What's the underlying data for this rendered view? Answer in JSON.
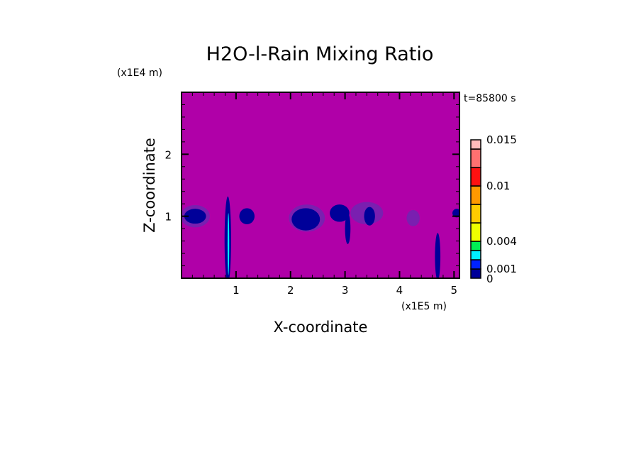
{
  "chart_data": {
    "type": "heatmap",
    "title": "H2O-l-Rain Mixing Ratio",
    "xlabel": "X-coordinate",
    "ylabel": "Z-coordinate",
    "x_unit": "(x1E5 m)",
    "y_unit": "(x1E4 m)",
    "time_label": "t=85800 s",
    "xlim": [
      0,
      5.1
    ],
    "ylim": [
      0,
      3.0
    ],
    "x_ticks": [
      1,
      2,
      3,
      4,
      5
    ],
    "x_tick_labels": [
      "1",
      "2",
      "3",
      "4",
      "5"
    ],
    "y_ticks": [
      1,
      2
    ],
    "y_tick_labels": [
      "1",
      "2"
    ],
    "background_color": "#b000a8",
    "colorbar": {
      "levels": [
        0,
        0.001,
        0.002,
        0.003,
        0.004,
        0.006,
        0.008,
        0.01,
        0.012,
        0.014,
        0.015
      ],
      "colors": [
        "#000099",
        "#0022ff",
        "#00eeff",
        "#00ee55",
        "#eeff00",
        "#ffcc00",
        "#ff9900",
        "#ff1111",
        "#ff7070",
        "#ffbbbb"
      ],
      "labels": [
        {
          "value": 0,
          "text": "0"
        },
        {
          "value": 0.001,
          "text": "0.001"
        },
        {
          "value": 0.004,
          "text": "0.004"
        },
        {
          "value": 0.01,
          "text": "0.01"
        },
        {
          "value": 0.015,
          "text": "0.015"
        }
      ]
    },
    "features": [
      {
        "x": 0.25,
        "z": 1.0,
        "rx": 0.27,
        "rz": 0.18,
        "color": "#7a1fb0"
      },
      {
        "x": 0.25,
        "z": 1.0,
        "rx": 0.2,
        "rz": 0.12,
        "color": "#000099"
      },
      {
        "x": 0.85,
        "z": 0.62,
        "rx": 0.06,
        "rz": 0.7,
        "color": "#000099"
      },
      {
        "x": 0.86,
        "z": 0.55,
        "rx": 0.015,
        "rz": 0.5,
        "color": "#00eeff"
      },
      {
        "x": 1.2,
        "z": 1.0,
        "rx": 0.14,
        "rz": 0.13,
        "color": "#000099"
      },
      {
        "x": 2.3,
        "z": 0.97,
        "rx": 0.33,
        "rz": 0.22,
        "color": "#7a1fb0"
      },
      {
        "x": 2.28,
        "z": 0.95,
        "rx": 0.26,
        "rz": 0.18,
        "color": "#000099"
      },
      {
        "x": 2.9,
        "z": 1.05,
        "rx": 0.18,
        "rz": 0.14,
        "color": "#000099"
      },
      {
        "x": 3.05,
        "z": 0.8,
        "rx": 0.05,
        "rz": 0.25,
        "color": "#000099"
      },
      {
        "x": 3.4,
        "z": 1.05,
        "rx": 0.3,
        "rz": 0.18,
        "color": "#7a1fb0"
      },
      {
        "x": 3.45,
        "z": 1.0,
        "rx": 0.1,
        "rz": 0.15,
        "color": "#000099"
      },
      {
        "x": 4.25,
        "z": 0.97,
        "rx": 0.12,
        "rz": 0.13,
        "color": "#7a1fb0"
      },
      {
        "x": 4.7,
        "z": 0.35,
        "rx": 0.05,
        "rz": 0.38,
        "color": "#000099"
      },
      {
        "x": 5.05,
        "z": 1.05,
        "rx": 0.08,
        "rz": 0.07,
        "color": "#000099"
      }
    ]
  }
}
